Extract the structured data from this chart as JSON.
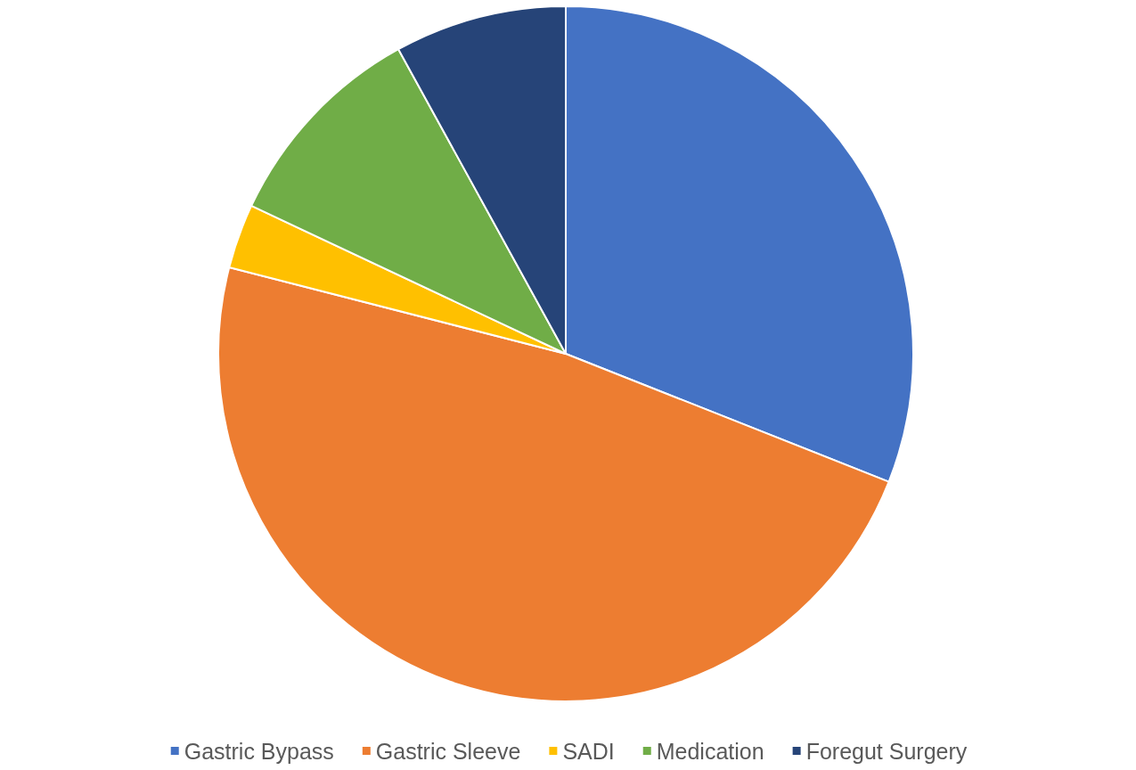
{
  "chart_data": {
    "type": "pie",
    "categories": [
      "Gastric Bypass",
      "Gastric Sleeve",
      "SADI",
      "Medication",
      "Foregut Surgery"
    ],
    "values": [
      31,
      48,
      3,
      10,
      8
    ],
    "colors": [
      "#4472c4",
      "#ed7d31",
      "#ffc000",
      "#70ad47",
      "#264478"
    ],
    "legend": "bottom"
  }
}
